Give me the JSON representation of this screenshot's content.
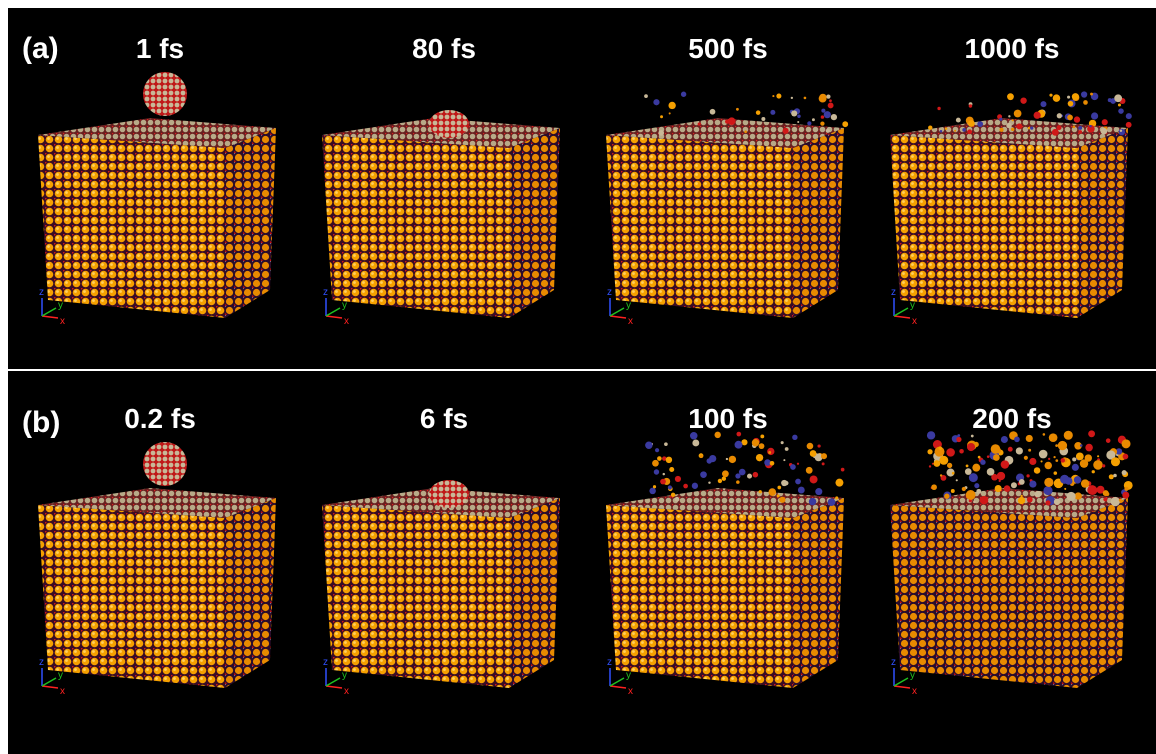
{
  "panels": [
    {
      "label": "(a)",
      "frames": [
        "1 fs",
        "80 fs",
        "500 fs",
        "1000 fs"
      ]
    },
    {
      "label": "(b)",
      "frames": [
        "0.2 fs",
        "6 fs",
        "100 fs",
        "200 fs"
      ]
    }
  ],
  "axis_labels": [
    "z",
    "y",
    "x"
  ]
}
